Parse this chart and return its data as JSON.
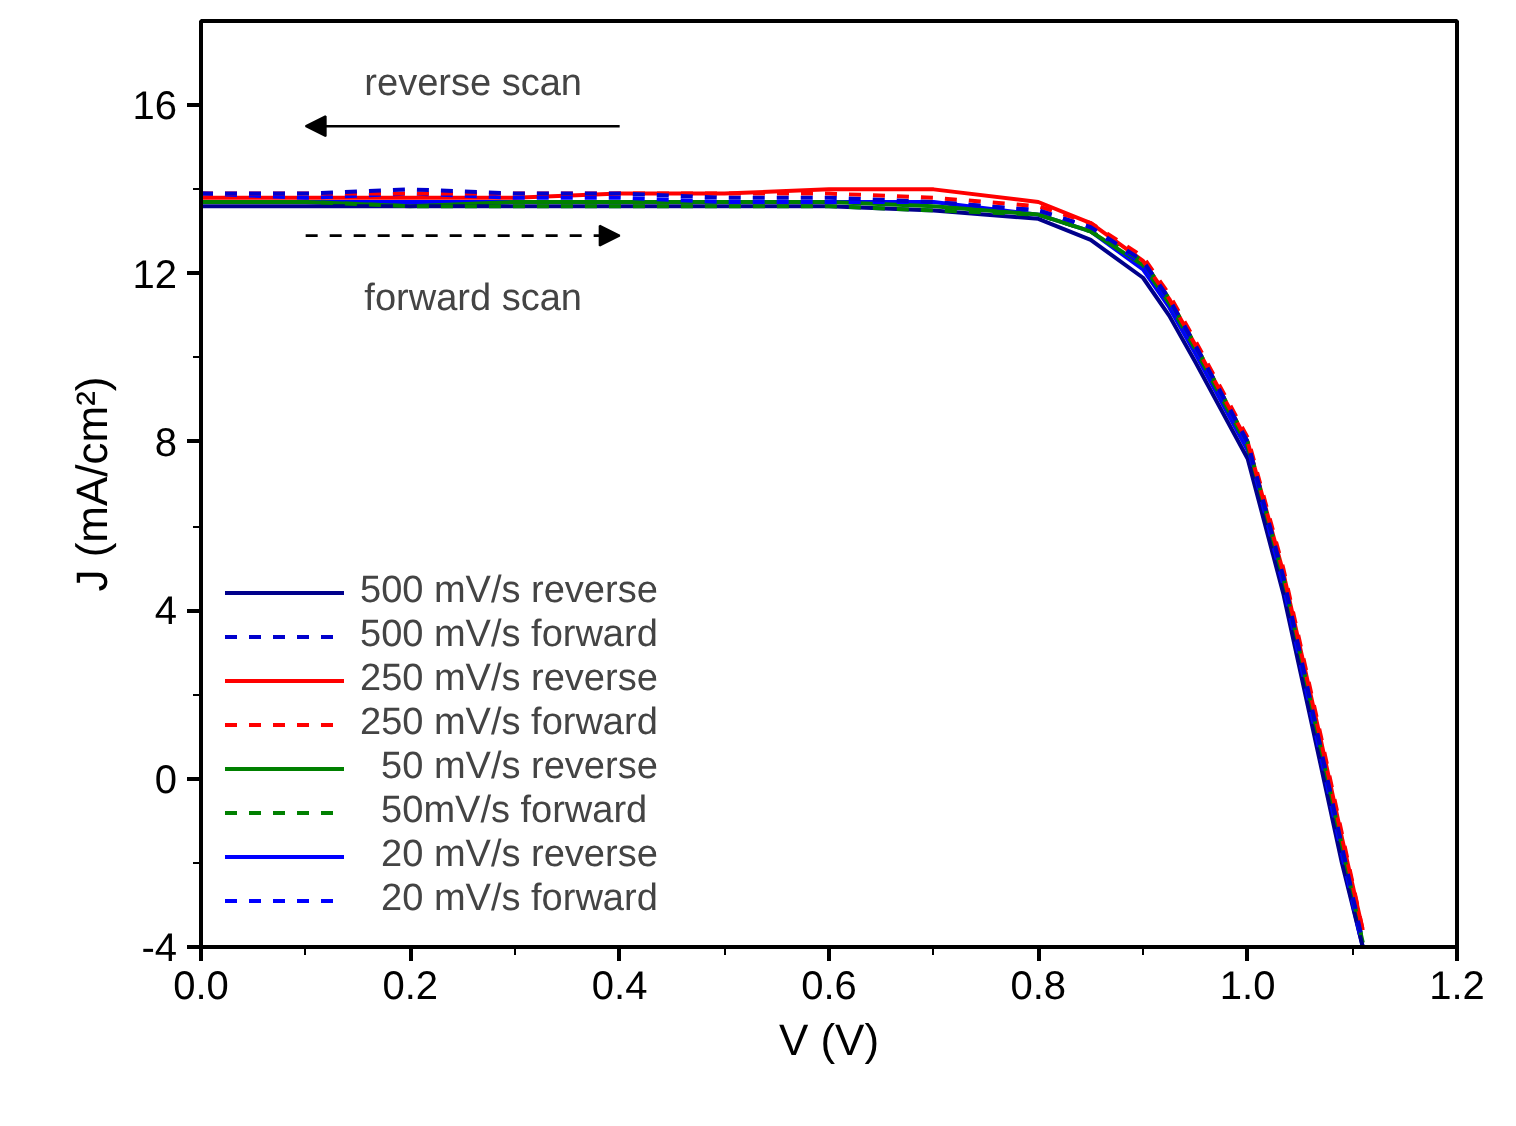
{
  "chart_data": {
    "type": "line",
    "xlabel": "V (V)",
    "ylabel": "J (mA/cm²)",
    "xlim": [
      0,
      1.2
    ],
    "ylim": [
      -4,
      18
    ],
    "xticks": [
      {
        "value": 0,
        "label": "0.0"
      },
      0.2,
      0.4,
      0.6,
      0.8,
      {
        "value": 1,
        "label": "1.0"
      },
      1.2
    ],
    "yticks": [
      -4,
      0,
      4,
      8,
      12,
      16
    ],
    "x": [
      0,
      0.1,
      0.2,
      0.3,
      0.4,
      0.5,
      0.6,
      0.7,
      0.8,
      0.85,
      0.9,
      0.925,
      0.95,
      1.0,
      1.034,
      1.07,
      1.09,
      1.11
    ],
    "grid": false,
    "legend": "bottom left",
    "annotations": [
      "reverse scan",
      "forward scan"
    ],
    "series": [
      {
        "name": "500 mV/s reverse",
        "color": "#00008b",
        "line_style": "solid",
        "values": [
          13.6,
          13.6,
          13.6,
          13.6,
          13.6,
          13.6,
          13.6,
          13.5,
          13.3,
          12.8,
          11.9,
          11.0,
          9.9,
          7.6,
          4.4,
          0.3,
          -2.0,
          -4.0
        ]
      },
      {
        "name": "500 mV/s forward",
        "color": "#0000cd",
        "line_style": "dashed",
        "values": [
          13.9,
          13.9,
          14.0,
          13.9,
          13.9,
          13.8,
          13.8,
          13.7,
          13.5,
          13.1,
          12.3,
          11.4,
          10.3,
          8.0,
          4.8,
          0.7,
          -1.6,
          -3.9
        ]
      },
      {
        "name": "250 mV/s reverse",
        "color": "#ff0000",
        "line_style": "solid",
        "values": [
          13.8,
          13.8,
          13.8,
          13.8,
          13.9,
          13.9,
          14.0,
          14.0,
          13.7,
          13.2,
          12.3,
          11.4,
          10.3,
          8.0,
          4.9,
          0.9,
          -1.4,
          -3.6
        ]
      },
      {
        "name": "250 mV/s forward",
        "color": "#ff0000",
        "line_style": "dashed",
        "values": [
          13.9,
          13.9,
          13.9,
          13.9,
          13.9,
          13.9,
          13.9,
          13.8,
          13.6,
          13.2,
          12.4,
          11.5,
          10.4,
          8.1,
          5.0,
          1.0,
          -1.3,
          -3.6
        ]
      },
      {
        "name": "  50 mV/s reverse",
        "color": "#008000",
        "line_style": "solid",
        "values": [
          13.7,
          13.7,
          13.6,
          13.7,
          13.7,
          13.7,
          13.7,
          13.6,
          13.4,
          13.0,
          12.2,
          11.3,
          10.2,
          7.9,
          4.7,
          0.6,
          -1.7,
          -3.9
        ]
      },
      {
        "name": "  50mV/s forward",
        "color": "#008000",
        "line_style": "dashed",
        "values": [
          13.7,
          13.7,
          13.6,
          13.6,
          13.6,
          13.6,
          13.6,
          13.5,
          13.4,
          13.0,
          12.3,
          11.4,
          10.3,
          8.0,
          4.8,
          0.7,
          -1.6,
          -3.9
        ]
      },
      {
        "name": "  20 mV/s reverse",
        "color": "#0000ff",
        "line_style": "solid",
        "values": [
          13.7,
          13.7,
          13.7,
          13.7,
          13.7,
          13.7,
          13.7,
          13.7,
          13.4,
          13.0,
          12.1,
          11.2,
          10.1,
          7.8,
          4.5,
          0.4,
          -1.9,
          -4.0
        ]
      },
      {
        "name": "  20 mV/s forward",
        "color": "#0000ff",
        "line_style": "dashed",
        "values": [
          13.9,
          13.8,
          13.9,
          13.8,
          13.8,
          13.7,
          13.7,
          13.7,
          13.5,
          13.1,
          12.2,
          11.3,
          10.2,
          7.9,
          4.6,
          0.5,
          -1.8,
          -4.0
        ]
      }
    ]
  }
}
